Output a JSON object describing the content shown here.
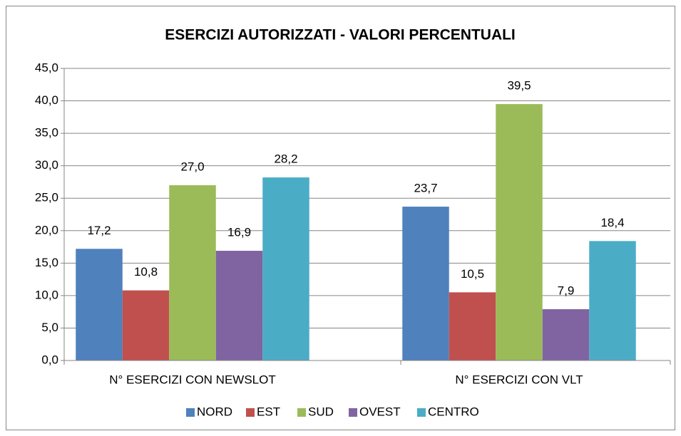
{
  "chart_data": {
    "type": "bar",
    "title": "ESERCIZI AUTORIZZATI - VALORI PERCENTUALI",
    "categories": [
      "N° ESERCIZI CON NEWSLOT",
      "N° ESERCIZI CON VLT"
    ],
    "series": [
      {
        "name": "NORD",
        "color": "#4f81bd",
        "values": [
          17.2,
          23.7
        ],
        "value_labels": [
          "17,2",
          "23,7"
        ]
      },
      {
        "name": "EST",
        "color": "#c0504d",
        "values": [
          10.8,
          10.5
        ],
        "value_labels": [
          "10,8",
          "10,5"
        ]
      },
      {
        "name": "SUD",
        "color": "#9bbb59",
        "values": [
          27.0,
          39.5
        ],
        "value_labels": [
          "27,0",
          "39,5"
        ]
      },
      {
        "name": "OVEST",
        "color": "#8064a2",
        "values": [
          16.9,
          7.9
        ],
        "value_labels": [
          "16,9",
          "7,9"
        ]
      },
      {
        "name": "CENTRO",
        "color": "#4bacc6",
        "values": [
          28.2,
          18.4
        ],
        "value_labels": [
          "28,2",
          "18,4"
        ]
      }
    ],
    "ylim": [
      0,
      45
    ],
    "yticks": [
      {
        "value": 0,
        "label": "0,0"
      },
      {
        "value": 5,
        "label": "5,0"
      },
      {
        "value": 10,
        "label": "10,0"
      },
      {
        "value": 15,
        "label": "15,0"
      },
      {
        "value": 20,
        "label": "20,0"
      },
      {
        "value": 25,
        "label": "25,0"
      },
      {
        "value": 30,
        "label": "30,0"
      },
      {
        "value": 35,
        "label": "35,0"
      },
      {
        "value": 40,
        "label": "40,0"
      },
      {
        "value": 45,
        "label": "45,0"
      }
    ],
    "grid": true,
    "legend": "bottom"
  }
}
